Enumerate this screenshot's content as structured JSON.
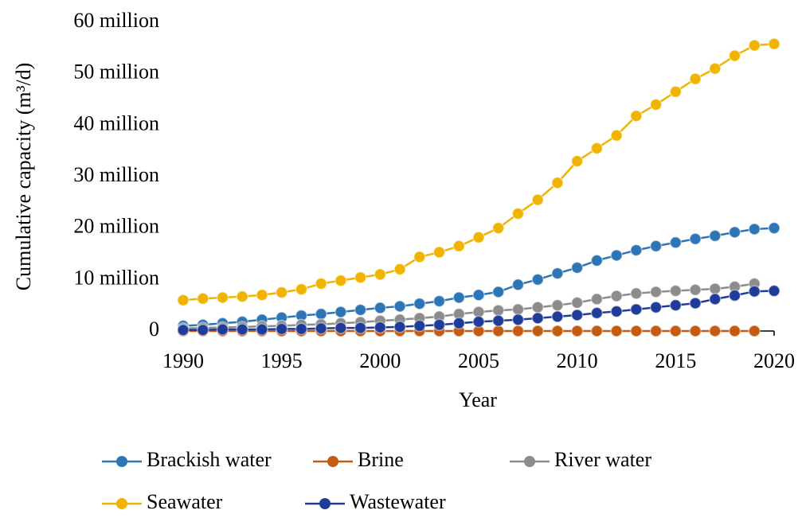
{
  "chart_data": {
    "type": "line",
    "x_label": "Year",
    "y_label": "Cumulative capacity (m³/d)",
    "x": [
      1990,
      1991,
      1992,
      1993,
      1994,
      1995,
      1996,
      1997,
      1998,
      1999,
      2000,
      2001,
      2002,
      2003,
      2004,
      2005,
      2006,
      2007,
      2008,
      2009,
      2010,
      2011,
      2012,
      2013,
      2014,
      2015,
      2016,
      2017,
      2018,
      2019,
      2020
    ],
    "xlim": [
      1990,
      2020
    ],
    "xticks": [
      1990,
      1995,
      2000,
      2005,
      2010,
      2015,
      2020
    ],
    "ylim": [
      0,
      60000000
    ],
    "yticks": [
      0,
      {
        "value": 10000000,
        "label": "10 million"
      },
      {
        "value": 20000000,
        "label": "20 million"
      },
      {
        "value": 30000000,
        "label": "30 million"
      },
      {
        "value": 40000000,
        "label": "40 million"
      },
      {
        "value": 50000000,
        "label": "50 million"
      },
      {
        "value": 60000000,
        "label": "60 million"
      }
    ],
    "grid": false,
    "legend": "bottom",
    "series": [
      {
        "name": "Brackish water",
        "color": "#2e75b6",
        "values": [
          1000000,
          1200000,
          1500000,
          1800000,
          2200000,
          2600000,
          3000000,
          3300000,
          3700000,
          4100000,
          4500000,
          4800000,
          5300000,
          5800000,
          6500000,
          7000000,
          7600000,
          9000000,
          10000000,
          11200000,
          12300000,
          13700000,
          14700000,
          15700000,
          16500000,
          17200000,
          17900000,
          18500000,
          19200000,
          19800000,
          20000000
        ]
      },
      {
        "name": "Brine",
        "color": "#c55a11",
        "values": [
          0,
          0,
          0,
          0,
          0,
          0,
          0,
          0,
          0,
          0,
          0,
          0,
          0,
          0,
          0,
          0,
          0,
          0,
          0,
          0,
          0,
          0,
          0,
          0,
          0,
          0,
          0,
          0,
          0,
          0,
          null
        ]
      },
      {
        "name": "River water",
        "color": "#8c8c8c",
        "values": [
          500000,
          600000,
          700000,
          800000,
          900000,
          1000000,
          1200000,
          1300000,
          1500000,
          1700000,
          2000000,
          2200000,
          2500000,
          2800000,
          3300000,
          3700000,
          4000000,
          4200000,
          4600000,
          5000000,
          5500000,
          6200000,
          6800000,
          7300000,
          7600000,
          7800000,
          8000000,
          8200000,
          8600000,
          9200000,
          null
        ]
      },
      {
        "name": "Seawater",
        "color": "#f0b400",
        "values": [
          6000000,
          6300000,
          6500000,
          6700000,
          7000000,
          7500000,
          8100000,
          9200000,
          9800000,
          10400000,
          11000000,
          12000000,
          14400000,
          15300000,
          16500000,
          18200000,
          20000000,
          22800000,
          25500000,
          28800000,
          33000000,
          35500000,
          38000000,
          41800000,
          44000000,
          46500000,
          49000000,
          51000000,
          53500000,
          55500000,
          55800000
        ]
      },
      {
        "name": "Wastewater",
        "color": "#1f3c99",
        "values": [
          200000,
          200000,
          300000,
          300000,
          300000,
          400000,
          400000,
          500000,
          600000,
          600000,
          700000,
          800000,
          1000000,
          1200000,
          1500000,
          1800000,
          2000000,
          2200000,
          2500000,
          2800000,
          3100000,
          3500000,
          3800000,
          4200000,
          4600000,
          5000000,
          5400000,
          6200000,
          6900000,
          7700000,
          7800000
        ]
      }
    ]
  }
}
